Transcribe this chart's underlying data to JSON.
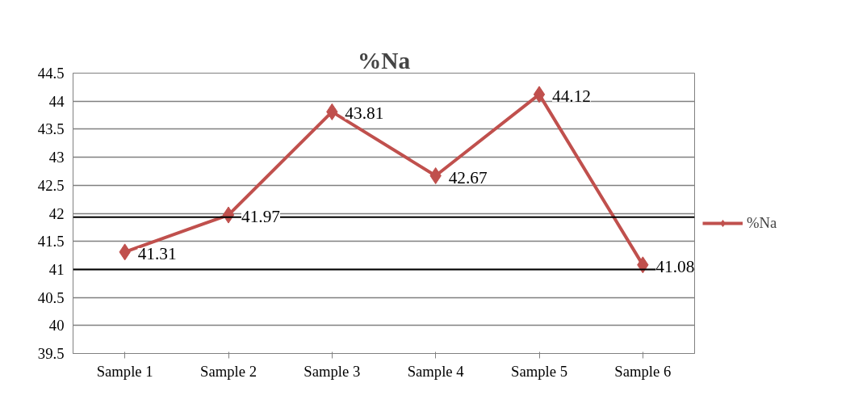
{
  "chart_data": {
    "type": "line",
    "title": "%Na",
    "categories": [
      "Sample 1",
      "Sample 2",
      "Sample 3",
      "Sample 4",
      "Sample 5",
      "Sample 6"
    ],
    "series": [
      {
        "name": "%Na",
        "color": "#c0504d",
        "values": [
          41.31,
          41.97,
          43.81,
          42.67,
          44.12,
          41.08
        ]
      }
    ],
    "ylim": [
      39.5,
      44.5
    ],
    "yticks": [
      {
        "value": 39.5,
        "label": "39.5"
      },
      40,
      {
        "value": 40.5,
        "label": "40.5"
      },
      41,
      {
        "value": 41.5,
        "label": "41.5"
      },
      42,
      {
        "value": 42.5,
        "label": "42.5"
      },
      43,
      {
        "value": 43.5,
        "label": "43.5"
      },
      44,
      {
        "value": 44.5,
        "label": "44.5"
      }
    ],
    "ref_lines": [
      {
        "axis": "y",
        "value": 41.93,
        "label": null,
        "color": "#000000"
      },
      {
        "axis": "y",
        "value": 41,
        "label": null,
        "color": "#000000"
      }
    ],
    "grid": "y",
    "legend": "right",
    "marker": "diamond",
    "line_style": "solid",
    "data_labels": true
  }
}
